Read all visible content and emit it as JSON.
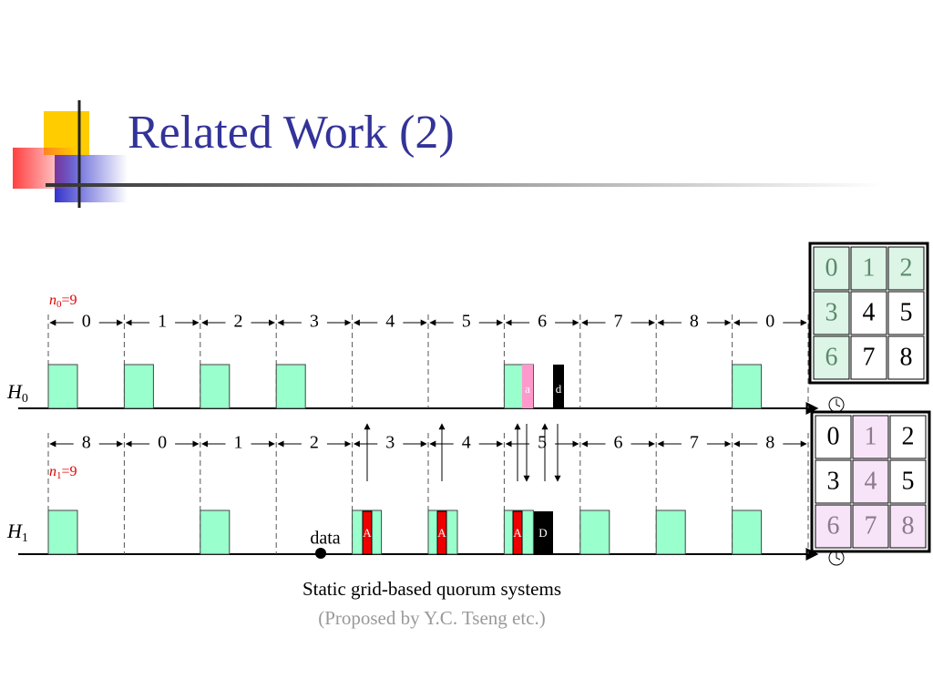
{
  "title": "Related Work (2)",
  "h0": {
    "name": "H",
    "sub": "0",
    "n_name": "n",
    "n_sub": "0",
    "n_value": "=9",
    "intervals": [
      "0",
      "1",
      "2",
      "3",
      "4",
      "5",
      "6",
      "7",
      "8",
      "0"
    ]
  },
  "h1": {
    "name": "H",
    "sub": "1",
    "n_name": "n",
    "n_sub": "1",
    "n_value": "=9",
    "intervals": [
      "8",
      "0",
      "1",
      "2",
      "3",
      "4",
      "5",
      "6",
      "7",
      "8"
    ]
  },
  "markers": {
    "a": "a",
    "d": "d",
    "A": [
      "A",
      "A",
      "A"
    ],
    "D": "D",
    "data": "data"
  },
  "grid0": [
    [
      "0",
      "1",
      "2"
    ],
    [
      "3",
      "4",
      "5"
    ],
    [
      "6",
      "7",
      "8"
    ]
  ],
  "grid1": [
    [
      "0",
      "1",
      "2"
    ],
    [
      "3",
      "4",
      "5"
    ],
    [
      "6",
      "7",
      "8"
    ]
  ],
  "caption": "Static grid-based quorum systems",
  "subcaption": "(Proposed by Y.C. Tseng etc.)"
}
